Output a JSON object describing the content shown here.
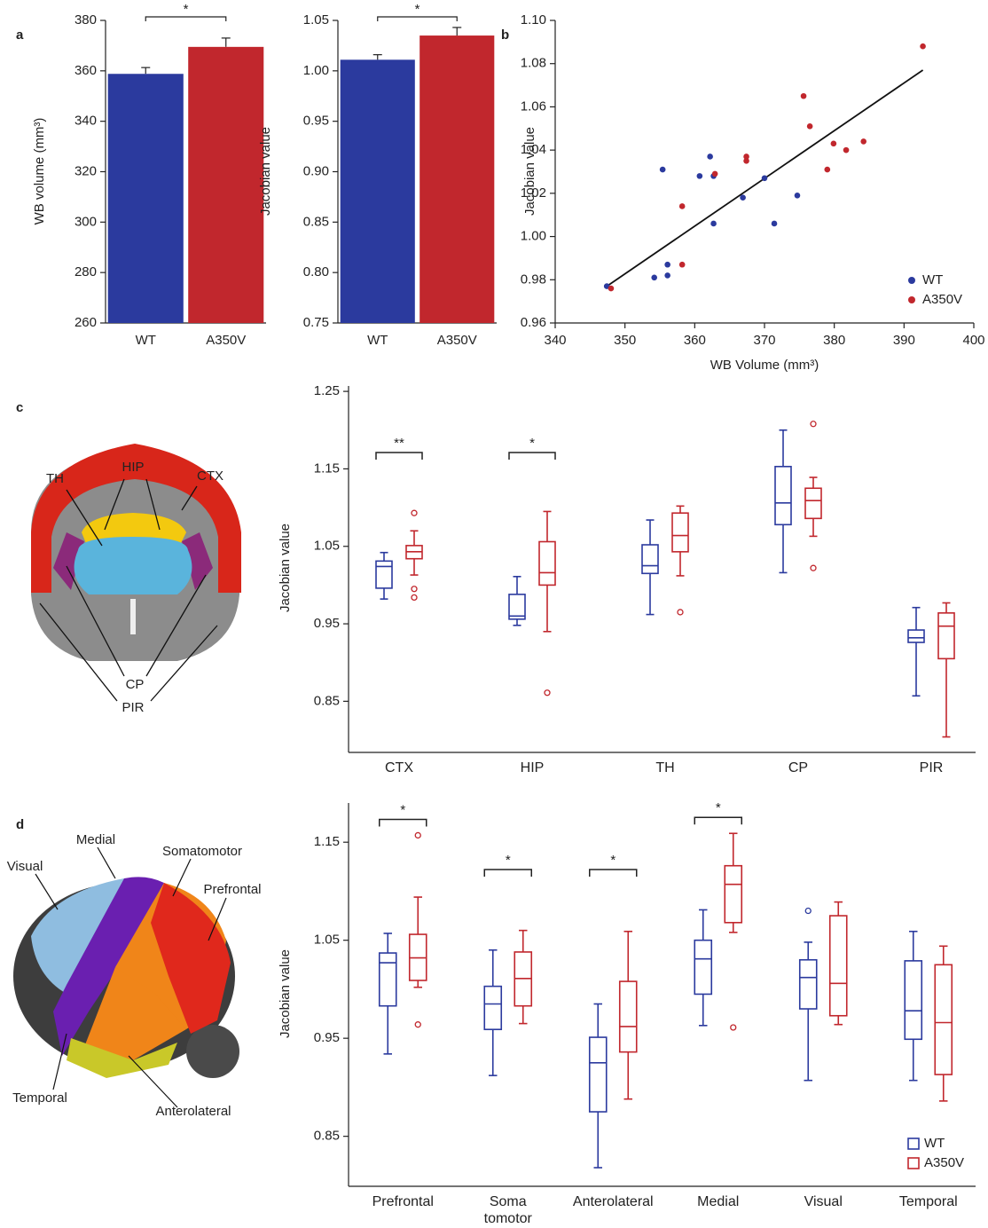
{
  "chart_data": [
    {
      "type": "bar",
      "panel": "a",
      "ylabel": "WB volume (mm³)",
      "categories": [
        "WT",
        "A350V"
      ],
      "values": [
        358.8,
        369.5
      ],
      "errors": [
        2.5,
        3.5
      ],
      "colors": [
        "#2b3a9e",
        "#c1272d"
      ],
      "ylim": [
        260,
        380
      ],
      "yticks": [
        260,
        280,
        300,
        320,
        340,
        360,
        380
      ],
      "significance": "*"
    },
    {
      "type": "bar",
      "ylabel": "Jacobian value",
      "categories": [
        "WT",
        "A350V"
      ],
      "values": [
        1.011,
        1.035
      ],
      "errors": [
        0.005,
        0.008
      ],
      "colors": [
        "#2b3a9e",
        "#c1272d"
      ],
      "ylim": [
        0.75,
        1.05
      ],
      "yticks": [
        0.75,
        {
          "value": 0.8,
          "label": "0.80"
        },
        0.85,
        {
          "value": 0.9,
          "label": "0.90"
        },
        0.95,
        {
          "value": 1.0,
          "label": "1.00"
        },
        1.05
      ],
      "significance": "*"
    },
    {
      "type": "scatter",
      "panel": "b",
      "xlabel": "WB Volume (mm³)",
      "ylabel": "Jacobian value",
      "xlim": [
        340,
        400
      ],
      "xticks": [
        340,
        350,
        360,
        370,
        380,
        390,
        400
      ],
      "ylim": [
        0.96,
        1.1
      ],
      "yticks": [
        0.96,
        0.98,
        {
          "value": 1.0,
          "label": "1.00"
        },
        1.02,
        1.04,
        1.06,
        1.08,
        {
          "value": 1.1,
          "label": "1.10"
        }
      ],
      "legend": "lower right",
      "series": [
        {
          "name": "WT",
          "color": "#2b3a9e",
          "x": [
            347.4,
            354.2,
            356.1,
            356.1,
            355.4,
            360.7,
            362.7,
            362.2,
            366.9,
            370.0,
            362.7,
            371.4,
            374.7
          ],
          "y": [
            0.977,
            0.981,
            0.982,
            0.987,
            1.031,
            1.028,
            1.028,
            1.037,
            1.018,
            1.027,
            1.006,
            1.006,
            1.019
          ]
        },
        {
          "name": "A350V",
          "color": "#c1272d",
          "x": [
            348.0,
            358.2,
            358.2,
            362.9,
            367.4,
            367.4,
            375.6,
            376.5,
            379.0,
            379.9,
            381.7,
            384.2,
            392.7
          ],
          "y": [
            0.976,
            0.987,
            1.014,
            1.029,
            1.037,
            1.035,
            1.065,
            1.051,
            1.031,
            1.043,
            1.04,
            1.044,
            1.088
          ]
        }
      ],
      "trend_line": {
        "x": [
          347.4,
          392.7
        ],
        "y": [
          0.977,
          1.077
        ]
      }
    },
    {
      "type": "box",
      "panel": "c",
      "ylabel": "Jacobian value",
      "image_labels": [
        "TH",
        "HIP",
        "CTX",
        "CP",
        "PIR"
      ],
      "categories": [
        "CTX",
        "HIP",
        "TH",
        "CP",
        "PIR"
      ],
      "ylim": [
        0.784,
        1.257
      ],
      "yticks": [
        0.85,
        0.95,
        1.05,
        1.15,
        1.25
      ],
      "significance": [
        {
          "category": "CTX",
          "label": "**"
        },
        {
          "category": "HIP",
          "label": "*"
        }
      ],
      "series": [
        {
          "name": "WT",
          "color": "#2b3a9e",
          "boxes": [
            {
              "whislo": 0.982,
              "q1": 0.996,
              "med": 1.024,
              "q3": 1.031,
              "whishi": 1.042,
              "fliers": []
            },
            {
              "whislo": 0.948,
              "q1": 0.956,
              "med": 0.96,
              "q3": 0.988,
              "whishi": 1.011,
              "fliers": []
            },
            {
              "whislo": 0.962,
              "q1": 1.015,
              "med": 1.025,
              "q3": 1.052,
              "whishi": 1.084,
              "fliers": []
            },
            {
              "whislo": 1.016,
              "q1": 1.078,
              "med": 1.106,
              "q3": 1.153,
              "whishi": 1.2,
              "fliers": []
            },
            {
              "whislo": 0.857,
              "q1": 0.926,
              "med": 0.932,
              "q3": 0.942,
              "whishi": 0.971,
              "fliers": []
            }
          ]
        },
        {
          "name": "A350V",
          "color": "#c1272d",
          "boxes": [
            {
              "whislo": 1.013,
              "q1": 1.034,
              "med": 1.043,
              "q3": 1.051,
              "whishi": 1.07,
              "fliers": [
                1.093,
                0.995,
                0.984
              ]
            },
            {
              "whislo": 0.94,
              "q1": 1.0,
              "med": 1.016,
              "q3": 1.056,
              "whishi": 1.095,
              "fliers": [
                0.861
              ]
            },
            {
              "whislo": 1.012,
              "q1": 1.043,
              "med": 1.064,
              "q3": 1.093,
              "whishi": 1.102,
              "fliers": [
                0.965
              ]
            },
            {
              "whislo": 1.063,
              "q1": 1.086,
              "med": 1.109,
              "q3": 1.125,
              "whishi": 1.139,
              "fliers": [
                1.208,
                1.022
              ]
            },
            {
              "whislo": 0.804,
              "q1": 0.905,
              "med": 0.947,
              "q3": 0.964,
              "whishi": 0.977,
              "fliers": []
            }
          ]
        }
      ]
    },
    {
      "type": "box",
      "panel": "d",
      "ylabel": "Jacobian value",
      "image_labels": [
        "Medial",
        "Visual",
        "Somatomotor",
        "Prefrontal",
        "Temporal",
        "Anterolateral"
      ],
      "categories": [
        "Prefrontal",
        "Soma\ntomotor",
        "Anterolateral",
        "Medial",
        "Visual",
        "Temporal"
      ],
      "ylim": [
        0.799,
        1.19
      ],
      "yticks": [
        0.85,
        0.95,
        1.05,
        1.15
      ],
      "legend": "lower right",
      "significance": [
        {
          "category": "Prefrontal",
          "label": "*"
        },
        {
          "category": "Soma\ntomotor",
          "label": "*"
        },
        {
          "category": "Anterolateral",
          "label": "*"
        },
        {
          "category": "Medial",
          "label": "*"
        }
      ],
      "series": [
        {
          "name": "WT",
          "color": "#2b3a9e",
          "boxes": [
            {
              "whislo": 0.934,
              "q1": 0.983,
              "med": 1.027,
              "q3": 1.037,
              "whishi": 1.057,
              "fliers": []
            },
            {
              "whislo": 0.912,
              "q1": 0.959,
              "med": 0.985,
              "q3": 1.003,
              "whishi": 1.04,
              "fliers": []
            },
            {
              "whislo": 0.818,
              "q1": 0.875,
              "med": 0.925,
              "q3": 0.951,
              "whishi": 0.985,
              "fliers": []
            },
            {
              "whislo": 0.963,
              "q1": 0.995,
              "med": 1.031,
              "q3": 1.05,
              "whishi": 1.081,
              "fliers": []
            },
            {
              "whislo": 0.907,
              "q1": 0.98,
              "med": 1.012,
              "q3": 1.03,
              "whishi": 1.048,
              "fliers": [
                1.08
              ]
            },
            {
              "whislo": 0.907,
              "q1": 0.949,
              "med": 0.978,
              "q3": 1.029,
              "whishi": 1.059,
              "fliers": []
            }
          ]
        },
        {
          "name": "A350V",
          "color": "#c1272d",
          "boxes": [
            {
              "whislo": 1.002,
              "q1": 1.009,
              "med": 1.032,
              "q3": 1.056,
              "whishi": 1.094,
              "fliers": [
                1.157,
                0.964
              ]
            },
            {
              "whislo": 0.965,
              "q1": 0.983,
              "med": 1.011,
              "q3": 1.038,
              "whishi": 1.06,
              "fliers": []
            },
            {
              "whislo": 0.888,
              "q1": 0.936,
              "med": 0.962,
              "q3": 1.008,
              "whishi": 1.059,
              "fliers": []
            },
            {
              "whislo": 1.058,
              "q1": 1.068,
              "med": 1.107,
              "q3": 1.126,
              "whishi": 1.159,
              "fliers": [
                0.961
              ]
            },
            {
              "whislo": 0.964,
              "q1": 0.973,
              "med": 1.006,
              "q3": 1.075,
              "whishi": 1.089,
              "fliers": []
            },
            {
              "whislo": 0.886,
              "q1": 0.913,
              "med": 0.966,
              "q3": 1.025,
              "whishi": 1.044,
              "fliers": []
            }
          ]
        }
      ]
    }
  ]
}
